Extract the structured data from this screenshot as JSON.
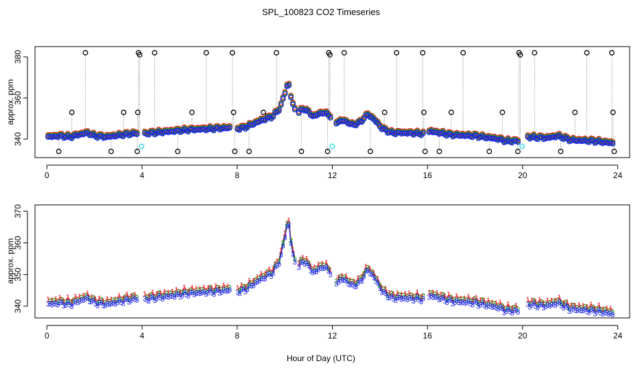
{
  "chart_data": [
    {
      "panel": "top",
      "type": "scatter",
      "title": "SPL_100823  CO2 Timeseries",
      "xlabel": "",
      "ylabel": "approx. ppm",
      "xlim": [
        -0.5,
        24.5
      ],
      "ylim": [
        331,
        385
      ],
      "xticks": [
        0,
        4,
        8,
        12,
        16,
        20,
        24
      ],
      "yticks": [
        340,
        360,
        380
      ],
      "colors": {
        "series1": "#e8141c",
        "series2": "#18a818",
        "series3": "#1c1cf0",
        "raw": "#000000",
        "flag": "#40e0e8",
        "spike_line": "#a0a0a0"
      },
      "profile": [
        [
          0.0,
          341.0
        ],
        [
          0.5,
          341.5
        ],
        [
          1.0,
          341.0
        ],
        [
          1.3,
          342.0
        ],
        [
          1.7,
          343.0
        ],
        [
          2.0,
          341.5
        ],
        [
          2.5,
          341.0
        ],
        [
          3.0,
          341.8
        ],
        [
          3.5,
          342.5
        ],
        [
          3.8,
          342.8
        ],
        [
          4.0,
          342.5
        ],
        [
          5.0,
          343.5
        ],
        [
          6.0,
          344.5
        ],
        [
          7.0,
          345.0
        ],
        [
          7.7,
          345.5
        ],
        [
          7.95,
          345.0
        ],
        [
          8.3,
          345.5
        ],
        [
          8.6,
          347.0
        ],
        [
          9.0,
          349.0
        ],
        [
          9.5,
          351.0
        ],
        [
          9.8,
          355.0
        ],
        [
          10.0,
          362.0
        ],
        [
          10.15,
          368.0
        ],
        [
          10.3,
          358.0
        ],
        [
          10.5,
          352.0
        ],
        [
          10.8,
          355.0
        ],
        [
          11.2,
          351.0
        ],
        [
          11.6,
          353.0
        ],
        [
          11.9,
          351.5
        ],
        [
          12.1,
          348.0
        ],
        [
          12.5,
          349.0
        ],
        [
          12.8,
          347.0
        ],
        [
          13.1,
          347.5
        ],
        [
          13.5,
          352.0
        ],
        [
          13.8,
          349.0
        ],
        [
          14.1,
          345.0
        ],
        [
          14.5,
          343.0
        ],
        [
          15.0,
          343.0
        ],
        [
          15.5,
          342.8
        ],
        [
          15.95,
          342.5
        ],
        [
          16.1,
          343.8
        ],
        [
          17.0,
          342.0
        ],
        [
          18.0,
          341.5
        ],
        [
          19.0,
          340.0
        ],
        [
          19.3,
          339.0
        ],
        [
          19.9,
          339.0
        ],
        [
          20.2,
          341.0
        ],
        [
          21.0,
          340.5
        ],
        [
          21.5,
          341.5
        ],
        [
          22.0,
          339.5
        ],
        [
          23.0,
          339.0
        ],
        [
          23.8,
          338.0
        ]
      ],
      "gaps": [
        [
          3.85,
          4.05
        ],
        [
          7.7,
          7.95
        ],
        [
          10.45,
          10.55
        ],
        [
          11.95,
          12.1
        ],
        [
          15.9,
          16.05
        ],
        [
          19.85,
          20.15
        ]
      ],
      "raw_spikes": [
        {
          "t": 0.5,
          "v": 334
        },
        {
          "t": 1.05,
          "v": 353
        },
        {
          "t": 1.62,
          "v": 382
        },
        {
          "t": 2.7,
          "v": 334
        },
        {
          "t": 3.23,
          "v": 353
        },
        {
          "t": 3.8,
          "v": 334
        },
        {
          "t": 3.82,
          "v": 353
        },
        {
          "t": 3.85,
          "v": 382
        },
        {
          "t": 3.9,
          "v": 381
        },
        {
          "t": 4.53,
          "v": 382
        },
        {
          "t": 5.5,
          "v": 334
        },
        {
          "t": 6.1,
          "v": 353
        },
        {
          "t": 6.7,
          "v": 382
        },
        {
          "t": 7.8,
          "v": 382
        },
        {
          "t": 7.85,
          "v": 353
        },
        {
          "t": 7.9,
          "v": 334
        },
        {
          "t": 8.5,
          "v": 334
        },
        {
          "t": 9.1,
          "v": 353
        },
        {
          "t": 9.65,
          "v": 382
        },
        {
          "t": 10.7,
          "v": 334
        },
        {
          "t": 11.8,
          "v": 334
        },
        {
          "t": 11.85,
          "v": 382
        },
        {
          "t": 11.9,
          "v": 381
        },
        {
          "t": 12.5,
          "v": 382
        },
        {
          "t": 13.6,
          "v": 334
        },
        {
          "t": 14.2,
          "v": 353
        },
        {
          "t": 14.7,
          "v": 382
        },
        {
          "t": 15.8,
          "v": 382
        },
        {
          "t": 15.85,
          "v": 353
        },
        {
          "t": 15.9,
          "v": 334
        },
        {
          "t": 16.5,
          "v": 334
        },
        {
          "t": 17.0,
          "v": 353
        },
        {
          "t": 17.5,
          "v": 382
        },
        {
          "t": 18.6,
          "v": 334
        },
        {
          "t": 19.15,
          "v": 353
        },
        {
          "t": 19.8,
          "v": 334
        },
        {
          "t": 19.85,
          "v": 382
        },
        {
          "t": 19.9,
          "v": 381
        },
        {
          "t": 20.5,
          "v": 382
        },
        {
          "t": 21.6,
          "v": 334
        },
        {
          "t": 22.2,
          "v": 353
        },
        {
          "t": 22.7,
          "v": 382
        },
        {
          "t": 23.75,
          "v": 382
        },
        {
          "t": 23.8,
          "v": 353
        },
        {
          "t": 23.85,
          "v": 334
        }
      ],
      "flag_points": [
        {
          "t": 3.98,
          "v": 336.5
        },
        {
          "t": 12.0,
          "v": 336.5
        },
        {
          "t": 19.98,
          "v": 336.5
        }
      ]
    },
    {
      "panel": "bottom",
      "type": "line",
      "title": "",
      "xlabel": "Hour of Day (UTC)",
      "ylabel": "approx. ppm",
      "xlim": [
        -0.5,
        24.5
      ],
      "ylim": [
        336.3,
        372
      ],
      "xticks": [
        0,
        4,
        8,
        12,
        16,
        20,
        24
      ],
      "yticks": [
        340,
        350,
        360,
        370
      ],
      "series": [
        {
          "name": "1",
          "color": "#e8141c",
          "offset": 1.0
        },
        {
          "name": "2",
          "color": "#18a818",
          "offset": 0.3
        },
        {
          "name": "3",
          "color": "#1c1cf0",
          "offset": -0.5
        }
      ],
      "point_labels": [
        "1",
        "2",
        "3"
      ]
    }
  ]
}
